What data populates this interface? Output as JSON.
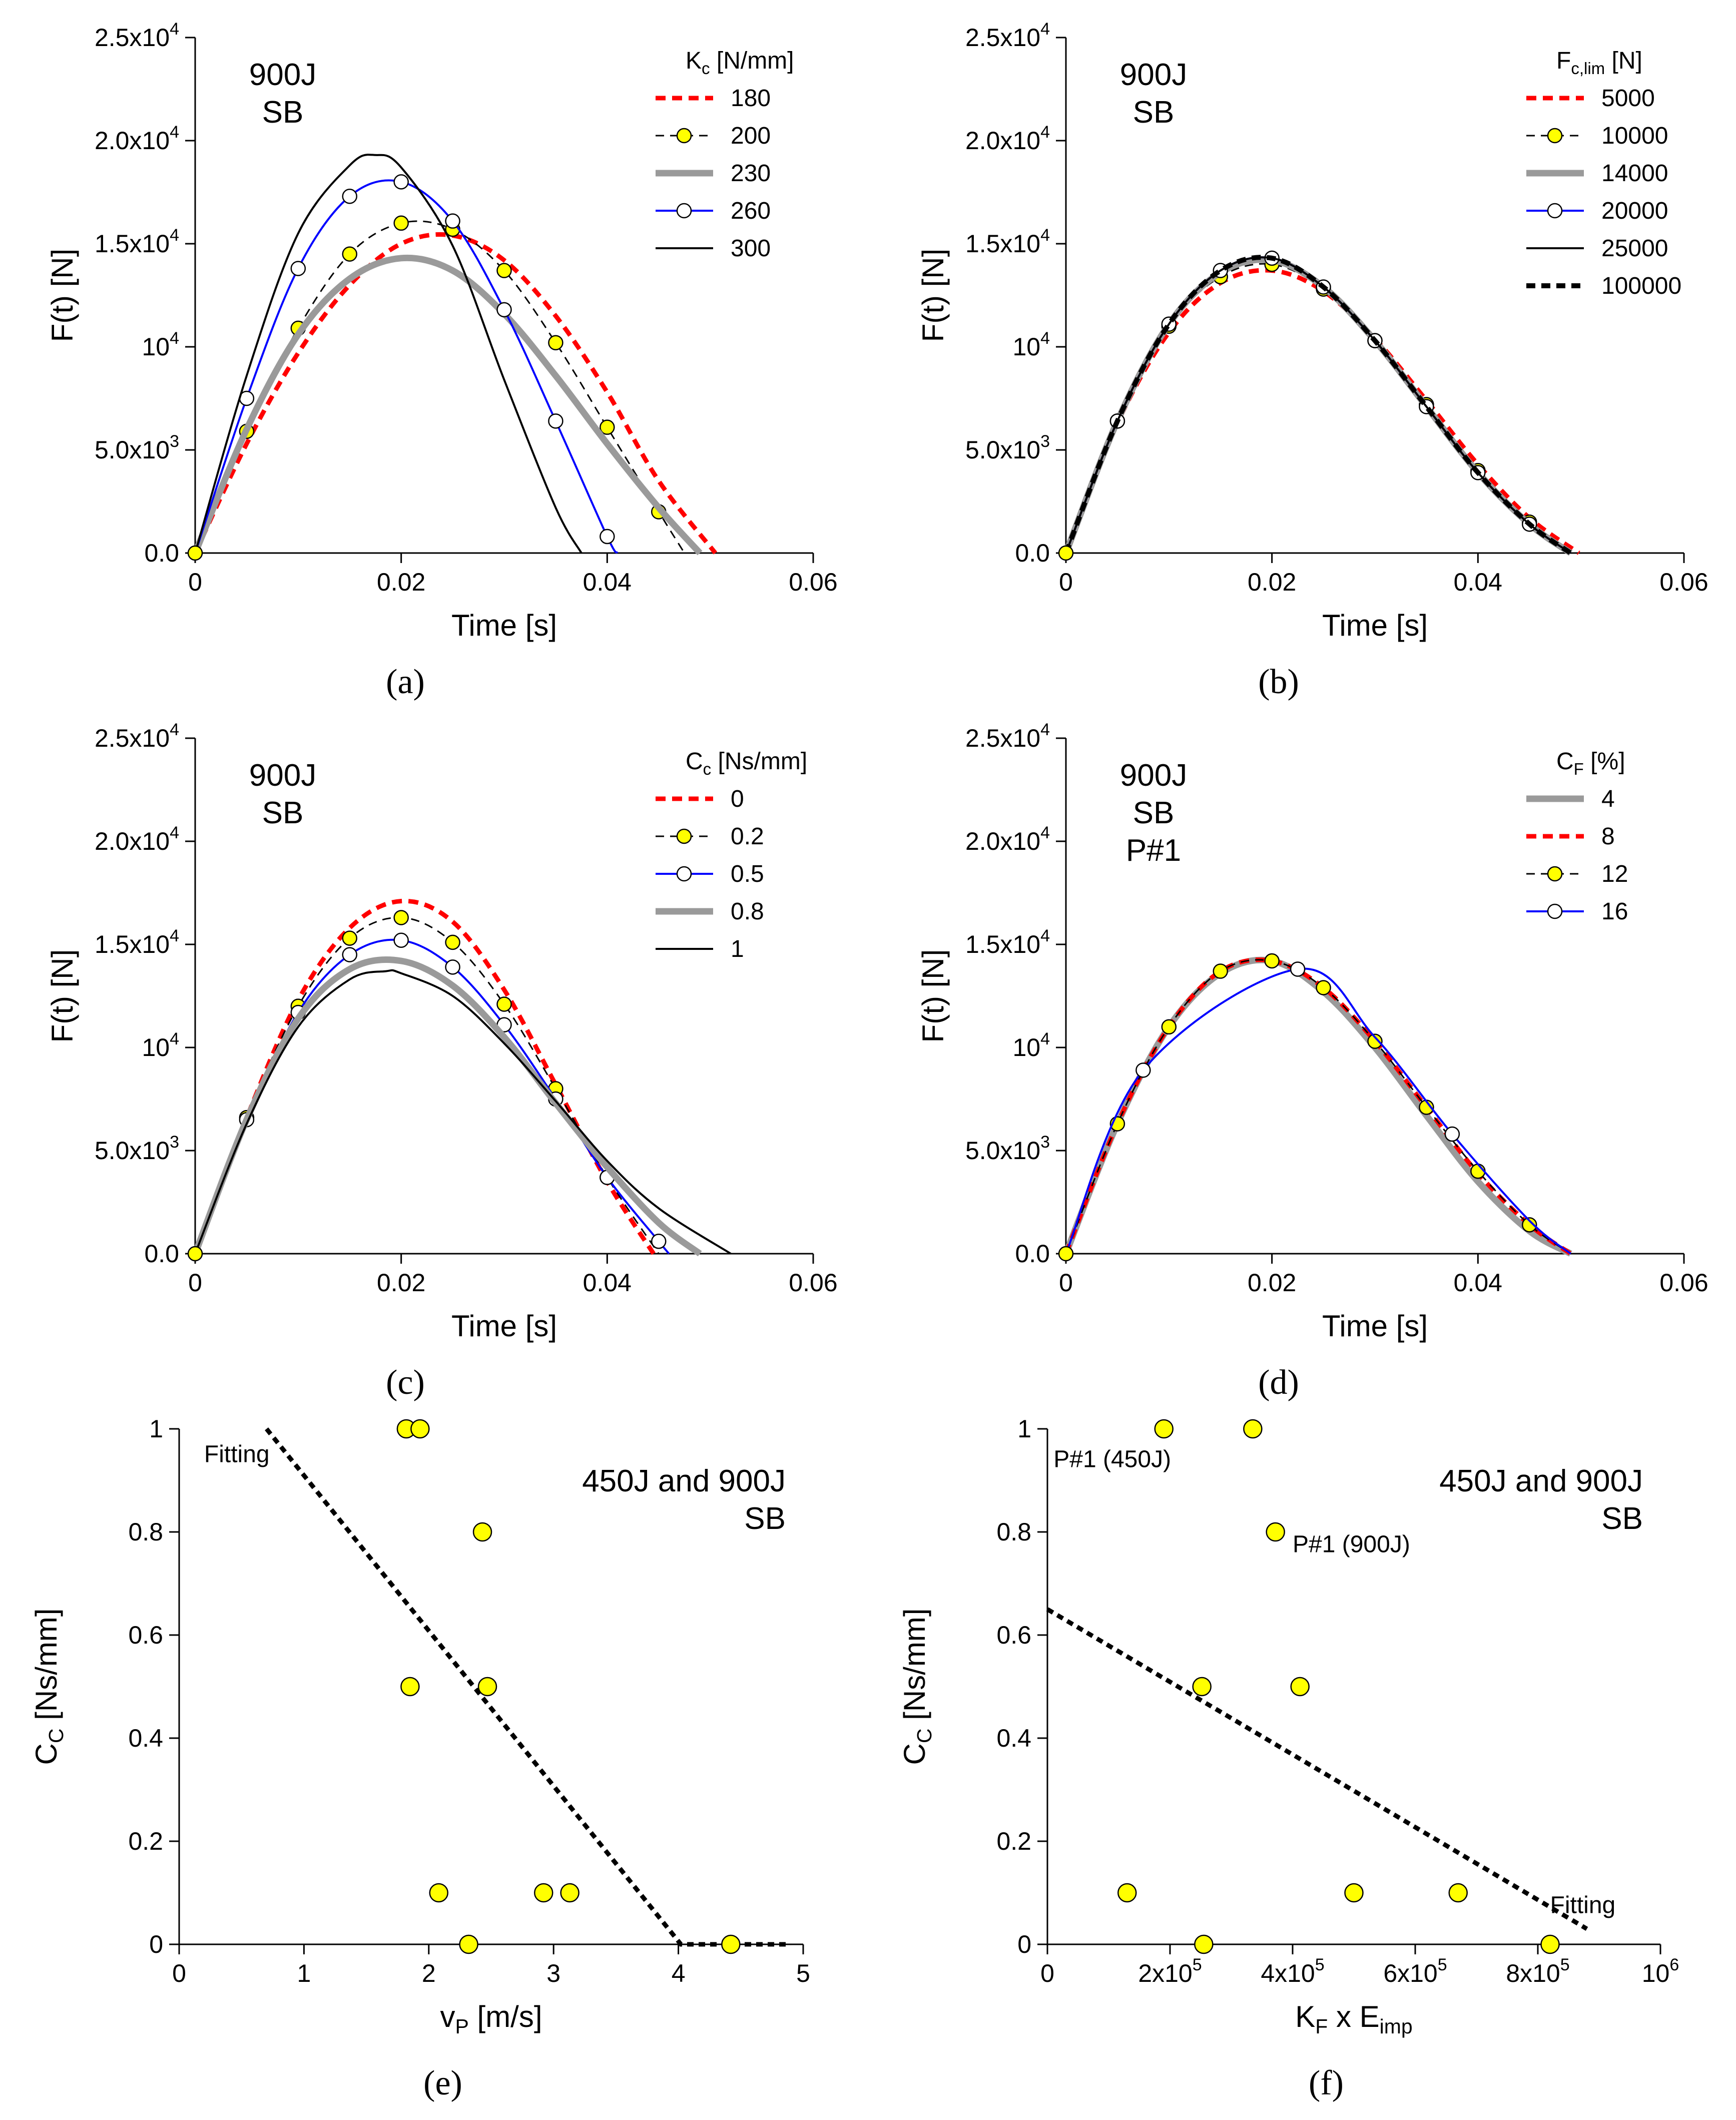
{
  "chart_data": [
    {
      "id": "a",
      "type": "line",
      "caption": "(a)",
      "xlabel": "Time [s]",
      "ylabel": "F(t)  [N]",
      "xlim": [
        0,
        0.06
      ],
      "ylim": [
        0,
        25000
      ],
      "xticks": [
        "0",
        "0.02",
        "0.04",
        "0.06"
      ],
      "xtick_values": [
        0,
        0.02,
        0.04,
        0.06
      ],
      "yticks": [
        "0.0",
        "5.0x10^3",
        "10^4",
        "1.5x10^4",
        "2.0x10^4",
        "2.5x10^4"
      ],
      "ytick_values": [
        0,
        5000,
        10000,
        15000,
        20000,
        25000
      ],
      "annotations": [
        {
          "text": "900J",
          "pos": "top-left"
        },
        {
          "text": "SB",
          "pos": "top-left"
        }
      ],
      "legend": {
        "title": "K_c [N/mm]",
        "position": "top-right"
      },
      "series": [
        {
          "name": "180",
          "style": "red-dash",
          "x": [
            0,
            0.005,
            0.01,
            0.015,
            0.02,
            0.025,
            0.03,
            0.035,
            0.04,
            0.045,
            0.0505
          ],
          "y": [
            0,
            5300,
            9700,
            13000,
            15000,
            15400,
            14200,
            11500,
            7800,
            3500,
            0
          ]
        },
        {
          "name": "200",
          "style": "black-dash-yellow",
          "x": [
            0,
            0.005,
            0.01,
            0.015,
            0.02,
            0.025,
            0.03,
            0.035,
            0.04,
            0.045,
            0.0475
          ],
          "y": [
            0,
            5900,
            10900,
            14500,
            16000,
            15700,
            13700,
            10200,
            6100,
            2000,
            0
          ]
        },
        {
          "name": "230",
          "style": "gray-thick",
          "x": [
            0,
            0.005,
            0.01,
            0.015,
            0.02,
            0.025,
            0.03,
            0.035,
            0.04,
            0.045,
            0.049
          ],
          "y": [
            0,
            6000,
            10600,
            13300,
            14300,
            13700,
            11600,
            8600,
            5300,
            2200,
            0
          ]
        },
        {
          "name": "260",
          "style": "blue-open",
          "x": [
            0,
            0.005,
            0.01,
            0.015,
            0.02,
            0.025,
            0.03,
            0.035,
            0.04,
            0.041
          ],
          "y": [
            0,
            7500,
            13800,
            17300,
            18000,
            16100,
            11800,
            6400,
            800,
            0
          ]
        },
        {
          "name": "300",
          "style": "black-thin",
          "x": [
            0,
            0.005,
            0.01,
            0.015,
            0.0175,
            0.02,
            0.025,
            0.03,
            0.035,
            0.0375
          ],
          "y": [
            0,
            8600,
            15500,
            18800,
            19300,
            18700,
            14900,
            8400,
            2200,
            0
          ]
        }
      ]
    },
    {
      "id": "b",
      "type": "line",
      "caption": "(b)",
      "xlabel": "Time [s]",
      "ylabel": "F(t)  [N]",
      "xlim": [
        0,
        0.06
      ],
      "ylim": [
        0,
        25000
      ],
      "xticks": [
        "0",
        "0.02",
        "0.04",
        "0.06"
      ],
      "xtick_values": [
        0,
        0.02,
        0.04,
        0.06
      ],
      "yticks": [
        "0.0",
        "5.0x10^3",
        "10^4",
        "1.5x10^4",
        "2.0x10^4",
        "2.5x10^4"
      ],
      "ytick_values": [
        0,
        5000,
        10000,
        15000,
        20000,
        25000
      ],
      "annotations": [
        {
          "text": "900J",
          "pos": "top-left"
        },
        {
          "text": "SB",
          "pos": "top-left"
        }
      ],
      "legend": {
        "title": "F_c,lim [N]",
        "position": "top-right"
      },
      "series": [
        {
          "name": "5000",
          "style": "red-dash",
          "x": [
            0,
            0.005,
            0.01,
            0.015,
            0.02,
            0.025,
            0.03,
            0.035,
            0.04,
            0.045,
            0.0498
          ],
          "y": [
            0,
            6300,
            10700,
            13100,
            13700,
            12700,
            10400,
            7400,
            4300,
            1700,
            0
          ]
        },
        {
          "name": "10000",
          "style": "black-dash-yellow",
          "x": [
            0,
            0.005,
            0.01,
            0.015,
            0.02,
            0.025,
            0.03,
            0.035,
            0.04,
            0.045,
            0.049
          ],
          "y": [
            0,
            6400,
            11000,
            13400,
            14000,
            12800,
            10300,
            7200,
            4000,
            1500,
            0
          ]
        },
        {
          "name": "14000",
          "style": "gray-thick",
          "x": [
            0,
            0.005,
            0.01,
            0.015,
            0.02,
            0.025,
            0.03,
            0.035,
            0.04,
            0.045,
            0.049
          ],
          "y": [
            0,
            6400,
            11100,
            13600,
            14200,
            12900,
            10300,
            7100,
            3900,
            1400,
            0
          ]
        },
        {
          "name": "20000",
          "style": "blue-open",
          "x": [
            0,
            0.005,
            0.01,
            0.015,
            0.02,
            0.025,
            0.03,
            0.035,
            0.04,
            0.045,
            0.049
          ],
          "y": [
            0,
            6400,
            11100,
            13700,
            14300,
            12900,
            10300,
            7100,
            3900,
            1400,
            0
          ]
        },
        {
          "name": "25000",
          "style": "black-thin",
          "x": [
            0,
            0.005,
            0.01,
            0.015,
            0.02,
            0.025,
            0.03,
            0.035,
            0.04,
            0.045,
            0.049
          ],
          "y": [
            0,
            6400,
            11100,
            13700,
            14300,
            12900,
            10300,
            7100,
            3900,
            1400,
            0
          ]
        },
        {
          "name": "100000",
          "style": "black-dash-thick",
          "x": [
            0,
            0.005,
            0.01,
            0.015,
            0.02,
            0.025,
            0.03,
            0.035,
            0.04,
            0.045,
            0.049
          ],
          "y": [
            0,
            6400,
            11100,
            13700,
            14300,
            12900,
            10300,
            7100,
            3900,
            1400,
            0
          ]
        }
      ]
    },
    {
      "id": "c",
      "type": "line",
      "caption": "(c)",
      "xlabel": "Time [s]",
      "ylabel": "F(t)  [N]",
      "xlim": [
        0,
        0.06
      ],
      "ylim": [
        0,
        25000
      ],
      "xticks": [
        "0",
        "0.02",
        "0.04",
        "0.06"
      ],
      "xtick_values": [
        0,
        0.02,
        0.04,
        0.06
      ],
      "yticks": [
        "0.0",
        "5.0x10^3",
        "10^4",
        "1.5x10^4",
        "2.0x10^4",
        "2.5x10^4"
      ],
      "ytick_values": [
        0,
        5000,
        10000,
        15000,
        20000,
        25000
      ],
      "annotations": [
        {
          "text": "900J",
          "pos": "top-left"
        },
        {
          "text": "SB",
          "pos": "top-left"
        }
      ],
      "legend": {
        "title": "C_c [Ns/mm]",
        "position": "top-right"
      },
      "series": [
        {
          "name": "0",
          "style": "red-dash",
          "x": [
            0,
            0.005,
            0.01,
            0.015,
            0.02,
            0.025,
            0.03,
            0.035,
            0.04,
            0.0445
          ],
          "y": [
            0,
            6600,
            12300,
            15800,
            17100,
            16100,
            12800,
            8200,
            3500,
            0
          ]
        },
        {
          "name": "0.2",
          "style": "black-dash-yellow",
          "x": [
            0,
            0.005,
            0.01,
            0.015,
            0.02,
            0.025,
            0.03,
            0.035,
            0.04,
            0.045
          ],
          "y": [
            0,
            6600,
            12000,
            15300,
            16300,
            15100,
            12100,
            8000,
            3700,
            0
          ]
        },
        {
          "name": "0.5",
          "style": "blue-open",
          "x": [
            0,
            0.005,
            0.01,
            0.015,
            0.02,
            0.025,
            0.03,
            0.035,
            0.04,
            0.045,
            0.046
          ],
          "y": [
            0,
            6500,
            11700,
            14500,
            15200,
            13900,
            11100,
            7500,
            3700,
            600,
            0
          ]
        },
        {
          "name": "0.8",
          "style": "gray-thick",
          "x": [
            0,
            0.005,
            0.01,
            0.015,
            0.02,
            0.025,
            0.03,
            0.035,
            0.04,
            0.045,
            0.049
          ],
          "y": [
            0,
            6500,
            11400,
            13800,
            14200,
            13000,
            10500,
            7300,
            4200,
            1500,
            0
          ]
        },
        {
          "name": "1",
          "style": "black-thin",
          "x": [
            0,
            0.005,
            0.01,
            0.015,
            0.0185,
            0.02,
            0.025,
            0.03,
            0.035,
            0.04,
            0.045,
            0.052
          ],
          "y": [
            0,
            6300,
            11000,
            13300,
            13700,
            13600,
            12500,
            10200,
            7400,
            4500,
            2200,
            0
          ]
        }
      ]
    },
    {
      "id": "d",
      "type": "line",
      "caption": "(d)",
      "xlabel": "Time [s]",
      "ylabel": "F(t)  [N]",
      "xlim": [
        0,
        0.06
      ],
      "ylim": [
        0,
        25000
      ],
      "xticks": [
        "0",
        "0.02",
        "0.04",
        "0.06"
      ],
      "xtick_values": [
        0,
        0.02,
        0.04,
        0.06
      ],
      "yticks": [
        "0.0",
        "5.0x10^3",
        "10^4",
        "1.5x10^4",
        "2.0x10^4",
        "2.5x10^4"
      ],
      "ytick_values": [
        0,
        5000,
        10000,
        15000,
        20000,
        25000
      ],
      "annotations": [
        {
          "text": "900J",
          "pos": "top-left"
        },
        {
          "text": "SB",
          "pos": "top-left"
        },
        {
          "text": "P#1",
          "pos": "top-left"
        }
      ],
      "legend": {
        "title": "C_F [%]",
        "position": "top-right"
      },
      "series": [
        {
          "name": "4",
          "style": "gray-thick",
          "x": [
            0,
            0.005,
            0.01,
            0.015,
            0.02,
            0.025,
            0.03,
            0.035,
            0.04,
            0.045,
            0.049
          ],
          "y": [
            0,
            6300,
            11000,
            13600,
            14200,
            12700,
            10000,
            6700,
            3500,
            1100,
            0
          ]
        },
        {
          "name": "8",
          "style": "red-dash",
          "x": [
            0,
            0.005,
            0.01,
            0.015,
            0.02,
            0.025,
            0.03,
            0.035,
            0.04,
            0.045,
            0.049
          ],
          "y": [
            0,
            6300,
            11000,
            13700,
            14200,
            12900,
            10300,
            7100,
            3900,
            1400,
            0
          ]
        },
        {
          "name": "12",
          "style": "black-dash-yellow",
          "x": [
            0,
            0.005,
            0.01,
            0.015,
            0.02,
            0.025,
            0.03,
            0.035,
            0.04,
            0.045,
            0.049
          ],
          "y": [
            0,
            6300,
            11000,
            13700,
            14200,
            12900,
            10300,
            7100,
            4000,
            1400,
            0
          ]
        },
        {
          "name": "16",
          "style": "blue-open",
          "x": [
            0,
            0.0075,
            0.0225,
            0.03,
            0.0375,
            0.045,
            0.049
          ],
          "y": [
            0,
            8900,
            13800,
            10500,
            5800,
            1600,
            0
          ],
          "marker_x": [
            0.0075,
            0.0225,
            0.0375
          ]
        }
      ]
    },
    {
      "id": "e",
      "type": "scatter",
      "caption": "(e)",
      "xlabel": "v_P [m/s]",
      "ylabel": "C_C [Ns/mm]",
      "xlim": [
        0,
        5
      ],
      "ylim": [
        0,
        1
      ],
      "xticks": [
        "0",
        "1",
        "2",
        "3",
        "4",
        "5"
      ],
      "xtick_values": [
        0,
        1,
        2,
        3,
        4,
        5
      ],
      "yticks": [
        "0",
        "0.2",
        "0.4",
        "0.6",
        "0.8",
        "1"
      ],
      "ytick_values": [
        0,
        0.2,
        0.4,
        0.6,
        0.8,
        1
      ],
      "annotations": [
        {
          "text": "450J and 900J",
          "pos": "top-right"
        },
        {
          "text": "SB",
          "pos": "top-right"
        }
      ],
      "label_annotations": [
        {
          "text": "Fitting",
          "x": 0.2,
          "y": 0.955
        }
      ],
      "points": {
        "x": [
          1.82,
          1.93,
          2.43,
          1.85,
          2.47,
          2.08,
          2.92,
          3.13,
          2.32,
          4.42
        ],
        "y": [
          1.0,
          1.0,
          0.8,
          0.5,
          0.5,
          0.1,
          0.1,
          0.1,
          0.0,
          0.0
        ]
      },
      "fit": {
        "x": [
          0.7,
          4.02,
          4.9
        ],
        "y": [
          1.0,
          0.0,
          0.0
        ]
      }
    },
    {
      "id": "f",
      "type": "scatter",
      "caption": "(f)",
      "xlabel": "K_F x E_imp",
      "ylabel": "C_C [Ns/mm]",
      "xlim": [
        0,
        1000000
      ],
      "ylim": [
        0,
        1
      ],
      "xticks": [
        "0",
        "2x10^5",
        "4x10^5",
        "6x10^5",
        "8x10^5",
        "10^6"
      ],
      "xtick_values": [
        0,
        200000,
        400000,
        600000,
        800000,
        1000000
      ],
      "yticks": [
        "0",
        "0.2",
        "0.4",
        "0.6",
        "0.8",
        "1"
      ],
      "ytick_values": [
        0,
        0.2,
        0.4,
        0.6,
        0.8,
        1
      ],
      "annotations": [
        {
          "text": "450J and 900J",
          "pos": "top-right"
        },
        {
          "text": "SB",
          "pos": "top-right"
        }
      ],
      "label_annotations": [
        {
          "text": "P#1 (450J)",
          "x": 10000,
          "y": 0.945
        },
        {
          "text": "P#1 (900J)",
          "x": 400000,
          "y": 0.78
        },
        {
          "text": "Fitting",
          "x": 820000,
          "y": 0.08
        }
      ],
      "points": {
        "x": [
          190000,
          335000,
          372000,
          252000,
          412000,
          130000,
          500000,
          670000,
          255000,
          820000
        ],
        "y": [
          1.0,
          1.0,
          0.8,
          0.5,
          0.5,
          0.1,
          0.1,
          0.1,
          0.0,
          0.0
        ]
      },
      "fit": {
        "x": [
          0,
          880000
        ],
        "y": [
          0.65,
          0.03
        ]
      }
    }
  ]
}
